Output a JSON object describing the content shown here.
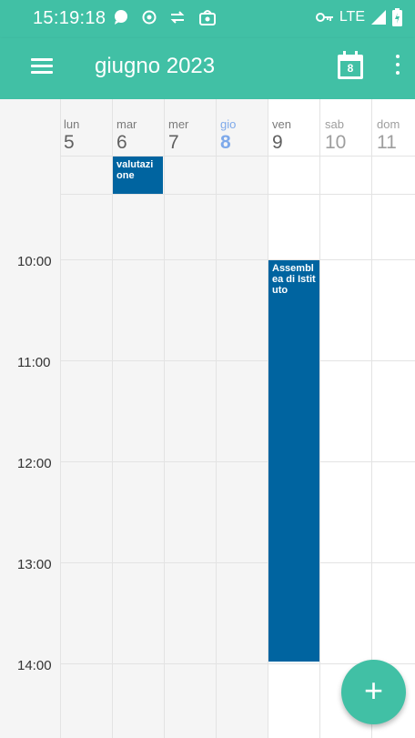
{
  "status_bar": {
    "time": "15:19:18",
    "network": "LTE",
    "icons": [
      "chat-bubble-icon",
      "record-icon",
      "transfer-icon",
      "app-store-icon",
      "vpn-key-icon",
      "signal-icon",
      "battery-charging-icon"
    ]
  },
  "app_bar": {
    "title": "giugno 2023",
    "today_day": "8",
    "icons": [
      "menu-icon",
      "calendar-today-icon",
      "more-vert-icon"
    ]
  },
  "week": {
    "days": [
      {
        "name": "lun",
        "num": "5"
      },
      {
        "name": "mar",
        "num": "6"
      },
      {
        "name": "mer",
        "num": "7"
      },
      {
        "name": "gio",
        "num": "8"
      },
      {
        "name": "ven",
        "num": "9"
      },
      {
        "name": "sab",
        "num": "10"
      },
      {
        "name": "dom",
        "num": "11"
      }
    ],
    "hours": [
      "10:00",
      "11:00",
      "12:00",
      "13:00",
      "14:00"
    ]
  },
  "events": [
    {
      "title": "valutazione",
      "day": "mar 6"
    },
    {
      "title": "Assemblea di Istituto",
      "day": "ven 9",
      "start": "10:00",
      "end": "14:00"
    }
  ],
  "fab": {
    "label": "+"
  },
  "colors": {
    "primary": "#41c0a5",
    "event": "#0064a0",
    "today": "#7ea9ea",
    "past_day_bg": "#f5f5f5"
  }
}
